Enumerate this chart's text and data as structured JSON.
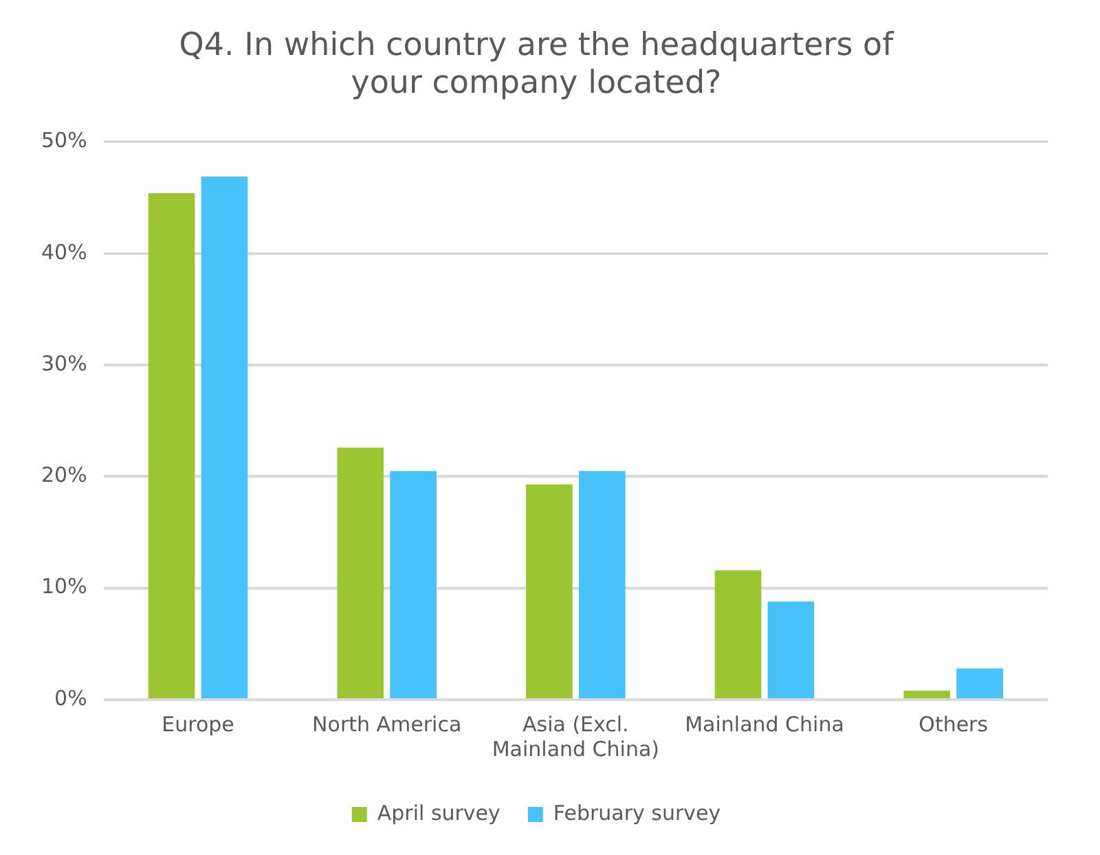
{
  "chart_data": {
    "type": "bar",
    "title": "Q4. In which country are the headquarters of your company located?",
    "categories": [
      "Europe",
      "North America",
      "Asia (Excl. Mainland China)",
      "Mainland China",
      "Others"
    ],
    "series": [
      {
        "name": "April survey",
        "color": "#9bc631",
        "values": [
          45.4,
          22.6,
          19.3,
          11.6,
          0.8
        ]
      },
      {
        "name": "February survey",
        "color": "#47c3fa",
        "values": [
          46.9,
          20.5,
          20.5,
          8.8,
          2.8
        ]
      }
    ],
    "ylim": [
      0,
      50
    ],
    "yticks": [
      {
        "value": 0,
        "label": "0%"
      },
      {
        "value": 10,
        "label": "10%"
      },
      {
        "value": 20,
        "label": "20%"
      },
      {
        "value": 30,
        "label": "30%"
      },
      {
        "value": 40,
        "label": "40%"
      },
      {
        "value": 50,
        "label": "50%"
      }
    ],
    "grid": "y",
    "legend": "bottom"
  }
}
